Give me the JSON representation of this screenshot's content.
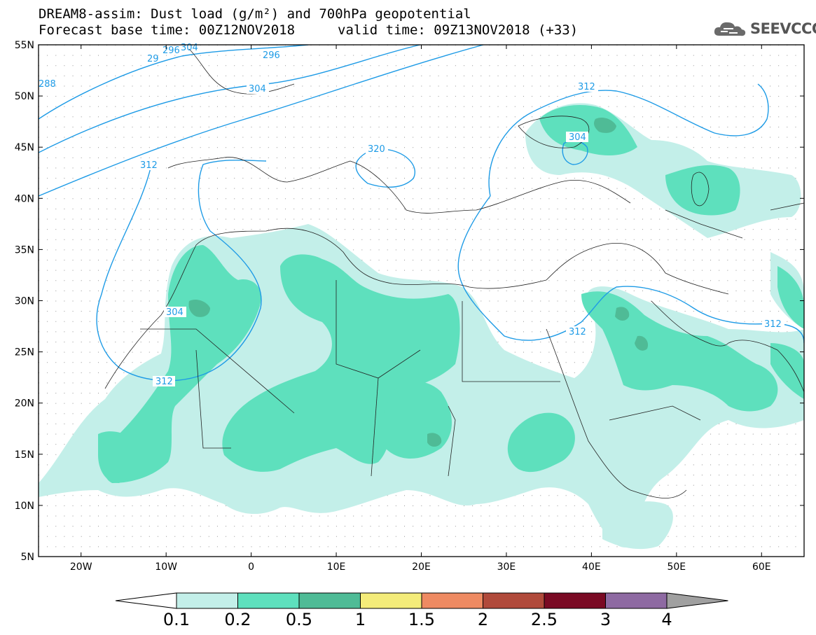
{
  "title": {
    "line1": "DREAM8-assim: Dust load (g/m²) and 700hPa geopotential",
    "line2": "Forecast base time: 00Z12NOV2018",
    "line2b": "valid time: 09Z13NOV2018 (+33)"
  },
  "logo": {
    "text": "SEEVCCC",
    "icon": "cloud-icon"
  },
  "map": {
    "lon_range": [
      -25,
      65
    ],
    "lat_range": [
      5,
      55
    ],
    "lon_ticks": [
      "20W",
      "10W",
      "0",
      "10E",
      "20E",
      "30E",
      "40E",
      "50E",
      "60E"
    ],
    "lat_ticks": [
      "55N",
      "50N",
      "45N",
      "40N",
      "35N",
      "30N",
      "25N",
      "20N",
      "15N",
      "10N",
      "5N"
    ],
    "contour_color": "#1e9be6",
    "contour_labels": [
      "296",
      "304",
      "312",
      "320",
      "288",
      "29",
      "296",
      "304",
      "312",
      "304",
      "312",
      "304",
      "312",
      "312"
    ]
  },
  "colorbar": {
    "labels": [
      "0.1",
      "0.2",
      "0.5",
      "1",
      "1.5",
      "2",
      "2.5",
      "3",
      "4"
    ],
    "colors": [
      "#c3efe9",
      "#5ee0bd",
      "#4fbb96",
      "#f4ec7a",
      "#ee8a62",
      "#b04a3b",
      "#7a0a24",
      "#8e6aa2",
      "#a0a0a0"
    ],
    "under_color": "#ffffff"
  }
}
